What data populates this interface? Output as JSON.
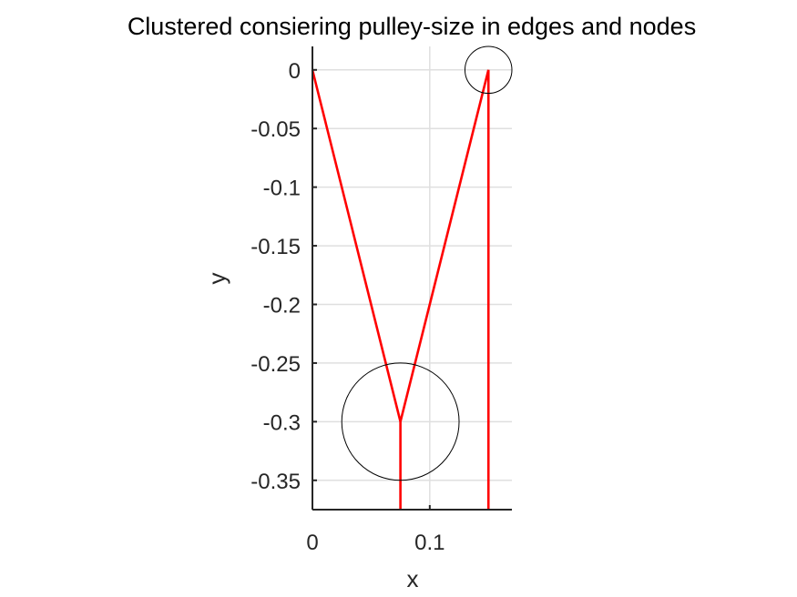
{
  "chart_data": {
    "type": "line",
    "title": "Clustered consiering pulley-size in edges and nodes",
    "xlabel": "x",
    "ylabel": "y",
    "xlim": [
      0,
      0.17
    ],
    "ylim": [
      -0.375,
      0.02
    ],
    "xticks": [
      0,
      0.1
    ],
    "xtick_labels": [
      "0",
      "0.1"
    ],
    "yticks": [
      0,
      -0.05,
      -0.1,
      -0.15,
      -0.2,
      -0.25,
      -0.3,
      -0.35
    ],
    "ytick_labels": [
      "0",
      "-0.05",
      "-0.1",
      "-0.15",
      "-0.2",
      "-0.25",
      "-0.3",
      "-0.35"
    ],
    "grid": true,
    "series_color": "#ff0000",
    "edges": [
      {
        "x": [
          0,
          0.075
        ],
        "y": [
          0,
          -0.3
        ]
      },
      {
        "x": [
          0.075,
          0.15
        ],
        "y": [
          -0.3,
          0
        ]
      },
      {
        "x": [
          0.075,
          0.075
        ],
        "y": [
          -0.3,
          -0.375
        ]
      },
      {
        "x": [
          0.15,
          0.15
        ],
        "y": [
          0,
          -0.375
        ]
      }
    ],
    "pulleys": [
      {
        "cx": 0.075,
        "cy": -0.3,
        "r": 0.05
      },
      {
        "cx": 0.15,
        "cy": 0,
        "r": 0.02
      }
    ]
  }
}
